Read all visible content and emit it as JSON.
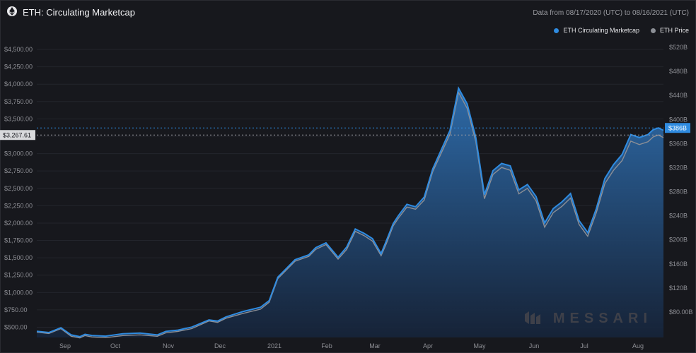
{
  "header": {
    "title": "ETH: Circulating Marketcap",
    "range": "Data from 08/17/2020 (UTC) to 08/16/2021 (UTC)"
  },
  "legend": [
    {
      "label": "ETH Circulating Marketcap",
      "color": "#2f8be0"
    },
    {
      "label": "ETH Price",
      "color": "#8c8f96"
    }
  ],
  "watermark": "MESSARI",
  "chart_data": {
    "type": "area",
    "x_ticks": [
      "Sep",
      "Oct",
      "Nov",
      "Dec",
      "2021",
      "Feb",
      "Mar",
      "Apr",
      "May",
      "Jun",
      "Jul",
      "Aug"
    ],
    "left_axis": {
      "ticks": [
        "$4,500.00",
        "$4,250.00",
        "$4,000.00",
        "$3,750.00",
        "$3,500.00",
        "$3,250.00",
        "$3,000.00",
        "$2,750.00",
        "$2,500.00",
        "$2,250.00",
        "$2,000.00",
        "$1,750.00",
        "$1,500.00",
        "$1,250.00",
        "$1,000.00",
        "$750.00",
        "$500.00"
      ],
      "ylim": [
        250,
        4500
      ]
    },
    "right_axis": {
      "ticks": [
        "$520B",
        "$480B",
        "$440B",
        "$400B",
        "$360B",
        "$320B",
        "$280B",
        "$240B",
        "$200B",
        "$160B",
        "$120B",
        "$80.00B"
      ],
      "ylim": [
        40,
        520
      ]
    },
    "current_price_label": "$3,267.61",
    "current_mcap_label": "$386B",
    "xlim": [
      0,
      364
    ],
    "series": [
      {
        "name": "ETH Circulating Marketcap",
        "unit": "B",
        "color": "#2f8be0",
        "x": [
          0,
          7,
          14,
          20,
          25,
          28,
          32,
          40,
          50,
          60,
          70,
          75,
          82,
          90,
          100,
          105,
          110,
          120,
          130,
          135,
          140,
          150,
          158,
          162,
          168,
          175,
          180,
          185,
          190,
          195,
          200,
          203,
          207,
          210,
          215,
          220,
          225,
          230,
          235,
          240,
          245,
          250,
          255,
          260,
          265,
          270,
          275,
          280,
          285,
          290,
          295,
          300,
          305,
          310,
          315,
          320,
          325,
          330,
          335,
          340,
          345,
          350,
          355,
          358,
          361,
          364
        ],
        "values": [
          48,
          46,
          54,
          42,
          39,
          43,
          41,
          40,
          44,
          45,
          42,
          48,
          50,
          55,
          67,
          65,
          72,
          81,
          88,
          99,
          138,
          167,
          175,
          187,
          195,
          171,
          188,
          218,
          211,
          202,
          177,
          198,
          227,
          240,
          259,
          255,
          271,
          318,
          350,
          382,
          452,
          426,
          370,
          275,
          315,
          327,
          323,
          283,
          292,
          272,
          228,
          252,
          263,
          277,
          232,
          212,
          252,
          302,
          325,
          342,
          375,
          370,
          375,
          383,
          386,
          382
        ]
      },
      {
        "name": "ETH Price",
        "unit": "$",
        "color": "#8c8f96",
        "x": [
          0,
          7,
          14,
          20,
          25,
          28,
          32,
          40,
          50,
          60,
          70,
          75,
          82,
          90,
          100,
          105,
          110,
          120,
          130,
          135,
          140,
          150,
          158,
          162,
          168,
          175,
          180,
          185,
          190,
          195,
          200,
          203,
          207,
          210,
          215,
          220,
          225,
          230,
          235,
          240,
          245,
          250,
          255,
          260,
          265,
          270,
          275,
          280,
          285,
          290,
          295,
          300,
          305,
          310,
          315,
          320,
          325,
          330,
          335,
          340,
          345,
          350,
          355,
          358,
          361,
          364
        ],
        "values": [
          430,
          410,
          480,
          370,
          345,
          380,
          360,
          350,
          380,
          390,
          370,
          420,
          440,
          480,
          590,
          570,
          630,
          700,
          760,
          860,
          1200,
          1450,
          1520,
          1620,
          1690,
          1480,
          1620,
          1880,
          1820,
          1740,
          1530,
          1700,
          1960,
          2070,
          2230,
          2200,
          2330,
          2740,
          3010,
          3280,
          3880,
          3650,
          3170,
          2350,
          2700,
          2800,
          2760,
          2420,
          2500,
          2320,
          1940,
          2150,
          2240,
          2360,
          1980,
          1810,
          2150,
          2570,
          2760,
          2900,
          3180,
          3130,
          3170,
          3240,
          3267.61,
          3230
        ]
      }
    ]
  }
}
